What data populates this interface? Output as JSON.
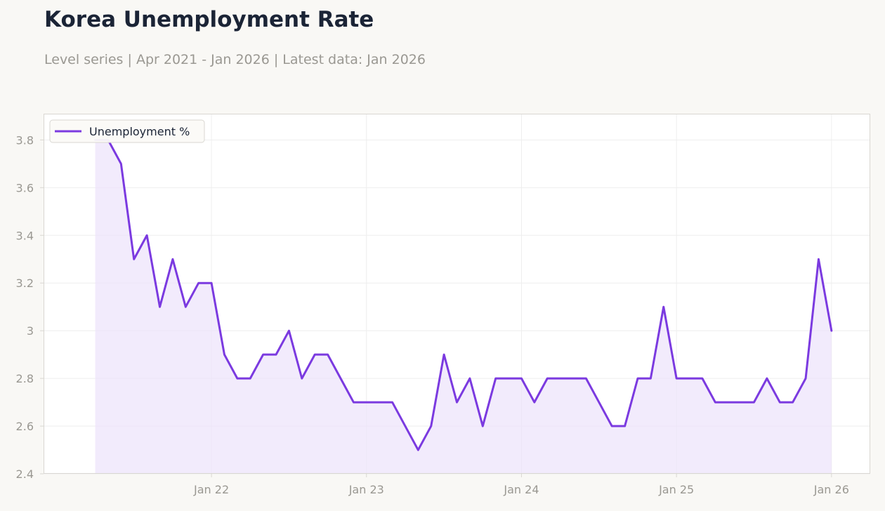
{
  "header": {
    "title": "Korea Unemployment Rate",
    "subtitle": "Level series | Apr 2021 - Jan 2026 | Latest data: Jan 2026"
  },
  "colors": {
    "line": "#7b3ae0",
    "fill": "#ece3fb",
    "grid": "#eeeeee",
    "frame": "#d9d7d2",
    "plot_bg": "#ffffff"
  },
  "chart_data": {
    "type": "area",
    "x_start": "2021-04",
    "x": [
      "2021-04",
      "2021-05",
      "2021-06",
      "2021-07",
      "2021-08",
      "2021-09",
      "2021-10",
      "2021-11",
      "2021-12",
      "2022-01",
      "2022-02",
      "2022-03",
      "2022-04",
      "2022-05",
      "2022-06",
      "2022-07",
      "2022-08",
      "2022-09",
      "2022-10",
      "2022-11",
      "2022-12",
      "2023-01",
      "2023-02",
      "2023-03",
      "2023-04",
      "2023-05",
      "2023-06",
      "2023-07",
      "2023-08",
      "2023-09",
      "2023-10",
      "2023-11",
      "2023-12",
      "2024-01",
      "2024-02",
      "2024-03",
      "2024-04",
      "2024-05",
      "2024-06",
      "2024-07",
      "2024-08",
      "2024-09",
      "2024-10",
      "2024-11",
      "2024-12",
      "2025-01",
      "2025-02",
      "2025-03",
      "2025-04",
      "2025-05",
      "2025-06",
      "2025-07",
      "2025-08",
      "2025-09",
      "2025-10",
      "2025-11",
      "2025-12",
      "2026-01"
    ],
    "series": [
      {
        "name": "Unemployment %",
        "values": [
          3.8,
          3.8,
          3.7,
          3.3,
          3.4,
          3.1,
          3.3,
          3.1,
          3.2,
          3.2,
          2.9,
          2.8,
          2.8,
          2.9,
          2.9,
          3.0,
          2.8,
          2.9,
          2.9,
          2.8,
          2.7,
          2.7,
          2.7,
          2.7,
          2.6,
          2.5,
          2.6,
          2.9,
          2.7,
          2.8,
          2.6,
          2.8,
          2.8,
          2.8,
          2.7,
          2.8,
          2.8,
          2.8,
          2.8,
          2.7,
          2.6,
          2.6,
          2.8,
          2.8,
          3.1,
          2.8,
          2.8,
          2.8,
          2.7,
          2.7,
          2.7,
          2.7,
          2.8,
          2.7,
          2.7,
          2.8,
          3.3,
          3.0
        ]
      }
    ],
    "x_ticks": [
      {
        "x": "2022-01",
        "label": "Jan 22"
      },
      {
        "x": "2023-01",
        "label": "Jan 23"
      },
      {
        "x": "2024-01",
        "label": "Jan 24"
      },
      {
        "x": "2025-01",
        "label": "Jan 25"
      },
      {
        "x": "2026-01",
        "label": "Jan 26"
      }
    ],
    "y_ticks": [
      {
        "value": 2.4,
        "label": "2.4"
      },
      {
        "value": 2.6,
        "label": "2.6"
      },
      {
        "value": 2.8,
        "label": "2.8"
      },
      {
        "value": 3.0,
        "label": "3"
      },
      {
        "value": 3.2,
        "label": "3.2"
      },
      {
        "value": 3.4,
        "label": "3.4"
      },
      {
        "value": 3.6,
        "label": "3.6"
      },
      {
        "value": 3.8,
        "label": "3.8"
      }
    ],
    "ylim": [
      2.4,
      3.91
    ],
    "xlim": [
      "2020-12",
      "2026-04"
    ],
    "grid": true,
    "legend": {
      "position": "top-left"
    },
    "xlabel": "",
    "ylabel": ""
  }
}
